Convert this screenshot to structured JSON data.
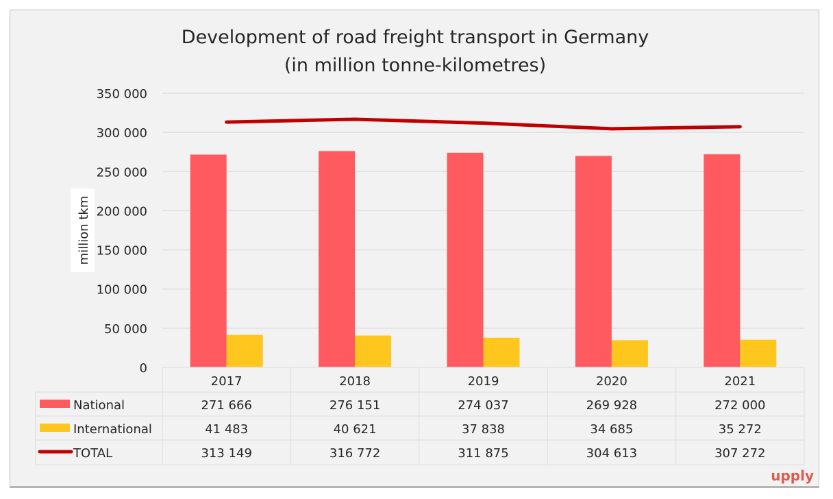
{
  "chart_data": {
    "type": "bar",
    "title": "Development of road freight transport in Germany",
    "subtitle": "(in million tonne-kilometres)",
    "ylabel": "million tkm",
    "xlabel": "",
    "ylim": [
      0,
      350000
    ],
    "yticks": [
      0,
      50000,
      100000,
      150000,
      200000,
      250000,
      300000,
      350000
    ],
    "ytick_labels": [
      "0",
      "50 000",
      "100 000",
      "150 000",
      "200 000",
      "250 000",
      "300 000",
      "350 000"
    ],
    "grid": true,
    "legend": "data-table",
    "categories": [
      "2017",
      "2018",
      "2019",
      "2020",
      "2021"
    ],
    "series": [
      {
        "name": "National",
        "kind": "bar",
        "color": "#ff5a5f",
        "values": [
          271666,
          276151,
          274037,
          269928,
          272000
        ],
        "labels": [
          "271 666",
          "276 151",
          "274 037",
          "269 928",
          "272 000"
        ]
      },
      {
        "name": "International",
        "kind": "bar",
        "color": "#ffc61e",
        "values": [
          41483,
          40621,
          37838,
          34685,
          35272
        ],
        "labels": [
          "41 483",
          "40 621",
          "37 838",
          "34 685",
          "35 272"
        ]
      },
      {
        "name": "TOTAL",
        "kind": "line",
        "color": "#c00000",
        "values": [
          313149,
          316772,
          311875,
          304613,
          307272
        ],
        "labels": [
          "313 149",
          "316 772",
          "311 875",
          "304 613",
          "307 272"
        ]
      }
    ]
  },
  "logo": "upply",
  "colors": {
    "background": "#f2f2f2",
    "grid": "#e0e0e0",
    "logo": "#e05a4f"
  }
}
